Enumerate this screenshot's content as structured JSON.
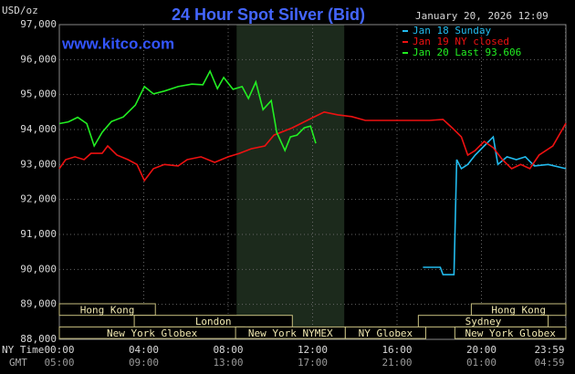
{
  "chart_data": {
    "type": "line",
    "title": "24 Hour Spot Silver (Bid)",
    "y_unit": "USD/oz",
    "timestamp": "January 20, 2026 12:09",
    "watermark": "www.kitco.com",
    "x_axis_labels": [
      "NY Time",
      "GMT"
    ],
    "xlim": [
      0,
      24
    ],
    "ylim": [
      88000,
      97000
    ],
    "xticks": [
      {
        "value": 0,
        "label": "00:00"
      },
      {
        "value": 4,
        "label": "04:00"
      },
      {
        "value": 8,
        "label": "08:00"
      },
      {
        "value": 12,
        "label": "12:00"
      },
      {
        "value": 16,
        "label": "16:00"
      },
      {
        "value": 20,
        "label": "20:00"
      },
      {
        "value": 23.983,
        "label": "23:59"
      }
    ],
    "x2_labels": [
      "05:00",
      "09:00",
      "13:00",
      "17:00",
      "21:00",
      "01:00",
      "04:59"
    ],
    "yticks": [
      {
        "value": 97000,
        "label": "97,000"
      },
      {
        "value": 96000,
        "label": "96,000"
      },
      {
        "value": 95000,
        "label": "95,000"
      },
      {
        "value": 94000,
        "label": "94,000"
      },
      {
        "value": 93000,
        "label": "93,000"
      },
      {
        "value": 92000,
        "label": "92,000"
      },
      {
        "value": 91000,
        "label": "91,000"
      },
      {
        "value": 90000,
        "label": "90,000"
      },
      {
        "value": 89000,
        "label": "89,000"
      },
      {
        "value": 88000,
        "label": "88,000"
      }
    ],
    "grid": true,
    "highlight_x": [
      8.4,
      13.5
    ],
    "sessions": [
      [
        {
          "label": "Hong Kong",
          "start": 0,
          "end": 4.55
        },
        {
          "label": "Hong Kong",
          "start": 19.52,
          "end": 24
        }
      ],
      [
        {
          "label": "London",
          "start": 3.55,
          "end": 11.04
        },
        {
          "label": "Sydney",
          "start": 17.01,
          "end": 23.16
        }
      ],
      [
        {
          "label": "New York Globex",
          "start": 0,
          "end": 8.79
        },
        {
          "label": "New York NYMEX",
          "start": 8.35,
          "end": 13.55
        },
        {
          "label": "NY Globex",
          "start": 13.55,
          "end": 17.36
        },
        {
          "label": "New York Globex",
          "start": 18.74,
          "end": 24
        }
      ]
    ],
    "series": [
      {
        "name": "Jan 18 Sunday",
        "color": "#22bbee",
        "x": [
          17.23,
          18.05,
          18.18,
          18.7,
          18.83,
          19.05,
          19.35,
          19.7,
          20.13,
          20.56,
          20.78,
          21.21,
          21.65,
          22.08,
          22.51,
          23.16,
          24
        ],
        "values": [
          90060,
          90060,
          89850,
          89850,
          93140,
          92880,
          93000,
          93270,
          93530,
          93790,
          93000,
          93220,
          93140,
          93220,
          92960,
          93000,
          92880
        ]
      },
      {
        "name": "Jan 19 NY closed",
        "color": "#ee1111",
        "x": [
          0,
          0.3,
          0.74,
          1.17,
          1.5,
          2.03,
          2.29,
          2.73,
          3.25,
          3.68,
          4.03,
          4.46,
          4.98,
          5.63,
          6.06,
          6.71,
          7.36,
          8.0,
          8.53,
          9.09,
          9.74,
          10.17,
          11.04,
          11.9,
          12.55,
          13.2,
          13.85,
          14.5,
          15.8,
          17.53,
          18.18,
          18.61,
          19.05,
          19.35,
          19.7,
          20.13,
          20.56,
          20.99,
          21.43,
          21.86,
          22.29,
          22.73,
          23.38,
          24
        ],
        "values": [
          92880,
          93140,
          93220,
          93140,
          93320,
          93320,
          93530,
          93270,
          93140,
          93000,
          92540,
          92880,
          93000,
          92960,
          93140,
          93220,
          93060,
          93220,
          93320,
          93450,
          93530,
          93840,
          94050,
          94310,
          94500,
          94420,
          94370,
          94260,
          94260,
          94260,
          94290,
          94050,
          93790,
          93270,
          93400,
          93660,
          93480,
          93140,
          92880,
          93000,
          92880,
          93270,
          93530,
          94180
        ]
      },
      {
        "name": "Jan 20 Last 93.606",
        "color": "#22ee22",
        "x": [
          0,
          0.43,
          0.87,
          1.3,
          1.65,
          2.03,
          2.47,
          3.03,
          3.6,
          4.03,
          4.46,
          4.98,
          5.63,
          6.28,
          6.8,
          7.14,
          7.49,
          7.79,
          8.23,
          8.66,
          8.96,
          9.31,
          9.65,
          10.04,
          10.3,
          10.69,
          10.95,
          11.26,
          11.6,
          11.9,
          12.15
        ],
        "values": [
          94170,
          94220,
          94350,
          94170,
          93530,
          93920,
          94230,
          94360,
          94700,
          95230,
          95020,
          95100,
          95230,
          95300,
          95280,
          95670,
          95170,
          95490,
          95150,
          95230,
          94890,
          95360,
          94570,
          94830,
          93920,
          93400,
          93790,
          93840,
          94050,
          94100,
          93606
        ]
      }
    ]
  }
}
